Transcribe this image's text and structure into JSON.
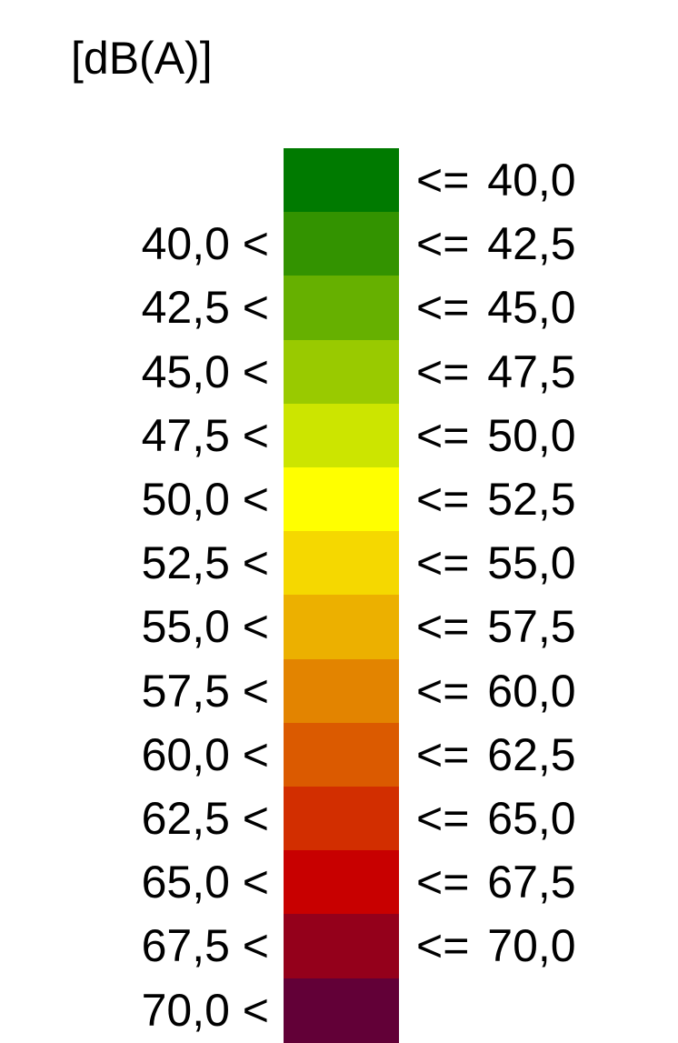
{
  "unit": "[dB(A)]",
  "chart_data": {
    "type": "table",
    "title": "[dB(A)]",
    "classes": [
      {
        "lower": "",
        "upper": "<= 40,0",
        "color": "#007a00"
      },
      {
        "lower": "40,0 <",
        "upper": "<= 42,5",
        "color": "#339300"
      },
      {
        "lower": "42,5 <",
        "upper": "<= 45,0",
        "color": "#66b000"
      },
      {
        "lower": "45,0 <",
        "upper": "<= 47,5",
        "color": "#99ca00"
      },
      {
        "lower": "47,5 <",
        "upper": "<= 50,0",
        "color": "#cce500"
      },
      {
        "lower": "50,0 <",
        "upper": "<= 52,5",
        "color": "#ffff00"
      },
      {
        "lower": "52,5 <",
        "upper": "<= 55,0",
        "color": "#f5d800"
      },
      {
        "lower": "55,0 <",
        "upper": "<= 57,5",
        "color": "#ecb000"
      },
      {
        "lower": "57,5 <",
        "upper": "<= 60,0",
        "color": "#e38400"
      },
      {
        "lower": "60,0 <",
        "upper": "<= 62,5",
        "color": "#db5a00"
      },
      {
        "lower": "62,5 <",
        "upper": "<= 65,0",
        "color": "#d22e00"
      },
      {
        "lower": "65,0 <",
        "upper": "<= 67,5",
        "color": "#c80000"
      },
      {
        "lower": "67,5 <",
        "upper": "<= 70,0",
        "color": "#94001b"
      },
      {
        "lower": "70,0 <",
        "upper": "",
        "color": "#620037"
      }
    ]
  }
}
